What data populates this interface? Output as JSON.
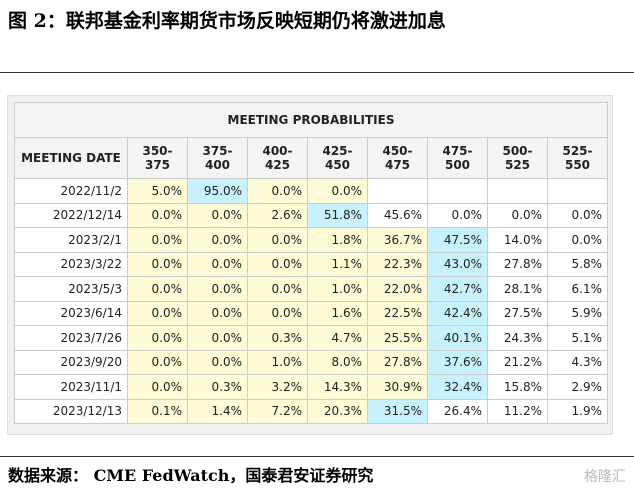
{
  "header": {
    "title": "图 2：联邦基金利率期货市场反映短期仍将激进加息"
  },
  "table": {
    "title": "MEETING PROBABILITIES",
    "columns": [
      "MEETING DATE",
      "350-375",
      "375-400",
      "400-425",
      "425-450",
      "450-475",
      "475-500",
      "500-525",
      "525-550"
    ],
    "rows": [
      [
        "2022/11/2",
        "5.0%",
        "95.0%",
        "0.0%",
        "0.0%",
        null,
        null,
        null,
        null
      ],
      [
        "2022/12/14",
        "0.0%",
        "0.0%",
        "2.6%",
        "51.8%",
        "45.6%",
        "0.0%",
        "0.0%",
        "0.0%"
      ],
      [
        "2023/2/1",
        "0.0%",
        "0.0%",
        "0.0%",
        "1.8%",
        "36.7%",
        "47.5%",
        "14.0%",
        "0.0%"
      ],
      [
        "2023/3/22",
        "0.0%",
        "0.0%",
        "0.0%",
        "1.1%",
        "22.3%",
        "43.0%",
        "27.8%",
        "5.8%"
      ],
      [
        "2023/5/3",
        "0.0%",
        "0.0%",
        "0.0%",
        "1.0%",
        "22.0%",
        "42.7%",
        "28.1%",
        "6.1%"
      ],
      [
        "2023/6/14",
        "0.0%",
        "0.0%",
        "0.0%",
        "1.6%",
        "22.5%",
        "42.4%",
        "27.5%",
        "5.9%"
      ],
      [
        "2023/7/26",
        "0.0%",
        "0.0%",
        "0.3%",
        "4.7%",
        "25.5%",
        "40.1%",
        "24.3%",
        "5.1%"
      ],
      [
        "2023/9/20",
        "0.0%",
        "0.0%",
        "1.0%",
        "8.0%",
        "27.8%",
        "37.6%",
        "21.2%",
        "4.3%"
      ],
      [
        "2023/11/1",
        "0.0%",
        "0.3%",
        "3.2%",
        "14.3%",
        "30.9%",
        "32.4%",
        "15.8%",
        "2.9%"
      ],
      [
        "2023/12/13",
        "0.1%",
        "1.4%",
        "7.2%",
        "20.3%",
        "31.5%",
        "26.4%",
        "11.2%",
        "1.9%"
      ]
    ],
    "fills": [
      [
        "#fdfbd6",
        "#c7f1fd",
        "#fdfbd6",
        "#fdfbd6",
        "#ffffff",
        "#ffffff",
        "#ffffff",
        "#ffffff"
      ],
      [
        "#fdfbd6",
        "#fdfbd6",
        "#fdfbd6",
        "#c7f1fd",
        "#ffffff",
        "#ffffff",
        "#ffffff",
        "#ffffff"
      ],
      [
        "#fdfbd6",
        "#fdfbd6",
        "#fdfbd6",
        "#fdfbd6",
        "#fdfbd6",
        "#c7f1fd",
        "#ffffff",
        "#ffffff"
      ],
      [
        "#fdfbd6",
        "#fdfbd6",
        "#fdfbd6",
        "#fdfbd6",
        "#fdfbd6",
        "#c7f1fd",
        "#ffffff",
        "#ffffff"
      ],
      [
        "#fdfbd6",
        "#fdfbd6",
        "#fdfbd6",
        "#fdfbd6",
        "#fdfbd6",
        "#c7f1fd",
        "#ffffff",
        "#ffffff"
      ],
      [
        "#fdfbd6",
        "#fdfbd6",
        "#fdfbd6",
        "#fdfbd6",
        "#fdfbd6",
        "#c7f1fd",
        "#ffffff",
        "#ffffff"
      ],
      [
        "#fdfbd6",
        "#fdfbd6",
        "#fdfbd6",
        "#fdfbd6",
        "#fdfbd6",
        "#c7f1fd",
        "#ffffff",
        "#ffffff"
      ],
      [
        "#fdfbd6",
        "#fdfbd6",
        "#fdfbd6",
        "#fdfbd6",
        "#fdfbd6",
        "#c7f1fd",
        "#ffffff",
        "#ffffff"
      ],
      [
        "#fdfbd6",
        "#fdfbd6",
        "#fdfbd6",
        "#fdfbd6",
        "#fdfbd6",
        "#c7f1fd",
        "#ffffff",
        "#ffffff"
      ],
      [
        "#fdfbd6",
        "#fdfbd6",
        "#fdfbd6",
        "#fdfbd6",
        "#c7f1fd",
        "#ffffff",
        "#ffffff",
        "#ffffff"
      ]
    ]
  },
  "footer": {
    "source": "数据来源： CME FedWatch，国泰君安证券研究",
    "watermark": "格隆汇"
  }
}
